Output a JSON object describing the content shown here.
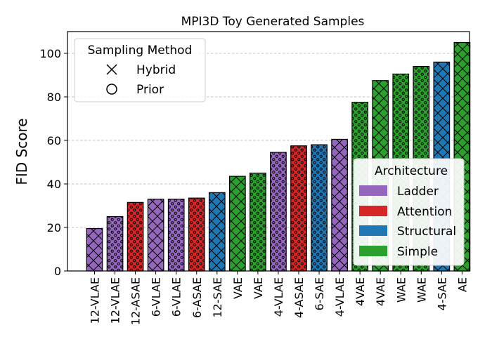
{
  "chart_data": {
    "type": "bar",
    "title": "MPI3D Toy Generated Samples",
    "xlabel": "",
    "ylabel": "FID Score",
    "ylim": [
      0,
      110
    ],
    "yticks": [
      0,
      20,
      40,
      60,
      80,
      100
    ],
    "grid": "y dashed",
    "categories": [
      "12-VLAE",
      "12-VLAE",
      "12-ASAE",
      "6-VLAE",
      "6-VLAE",
      "6-ASAE",
      "12-SAE",
      "VAE",
      "VAE",
      "4-VLAE",
      "4-ASAE",
      "6-SAE",
      "4-VLAE",
      "4VAE",
      "4VAE",
      "WAE",
      "WAE",
      "4-SAE",
      "AE"
    ],
    "values": [
      19.5,
      25,
      31.5,
      33,
      33,
      33.5,
      36,
      43.5,
      45,
      54.5,
      57.5,
      58,
      60.5,
      77.5,
      87.5,
      90.5,
      94,
      96,
      105
    ],
    "architecture": [
      "Ladder",
      "Ladder",
      "Attention",
      "Ladder",
      "Ladder",
      "Attention",
      "Structural",
      "Simple",
      "Simple",
      "Ladder",
      "Attention",
      "Structural",
      "Ladder",
      "Simple",
      "Simple",
      "Simple",
      "Simple",
      "Structural",
      "Simple"
    ],
    "sampling": [
      "Hybrid",
      "Prior",
      "Prior",
      "Hybrid",
      "Prior",
      "Prior",
      "Hybrid",
      "Hybrid",
      "Prior",
      "Prior",
      "Prior",
      "Prior",
      "Hybrid",
      "Prior",
      "Hybrid",
      "Prior",
      "Prior",
      "Hybrid",
      "Hybrid"
    ],
    "legend_sampling": {
      "title": "Sampling Method",
      "placement": "top-left",
      "entries": [
        {
          "label": "Hybrid",
          "pattern": "crosshatch"
        },
        {
          "label": "Prior",
          "pattern": "dots"
        }
      ]
    },
    "legend_architecture": {
      "title": "Architecture",
      "placement": "bottom-right",
      "entries": [
        {
          "label": "Ladder",
          "color": "#9467bd"
        },
        {
          "label": "Attention",
          "color": "#d62728"
        },
        {
          "label": "Structural",
          "color": "#1f77b4"
        },
        {
          "label": "Simple",
          "color": "#2ca02c"
        }
      ]
    }
  }
}
